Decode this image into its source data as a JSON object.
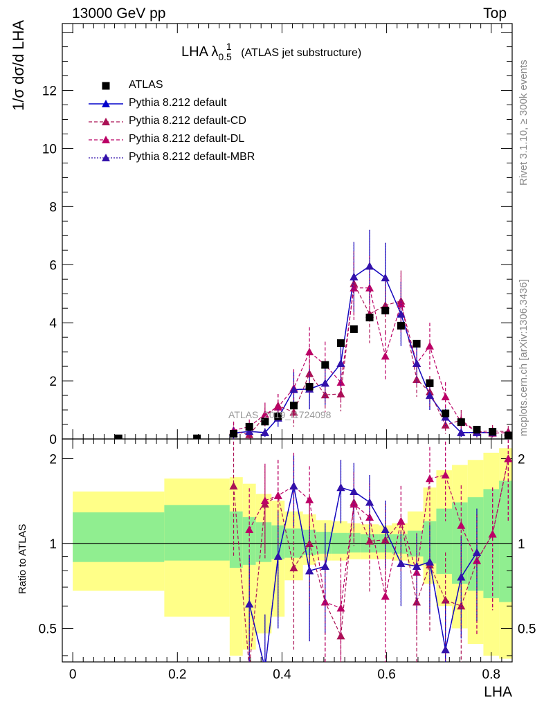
{
  "header": {
    "left": "13000 GeV pp",
    "right": "Top"
  },
  "plot_title": {
    "main": "LHA λ",
    "sub": "0.5",
    "sup": "1",
    "note": "(ATLAS jet substructure)"
  },
  "side_labels": {
    "rivet": "Rivet 3.1.10, ≥ 300k events",
    "mcplots": "mcplots.cern.ch [arXiv:1306.3436]"
  },
  "watermark": "ATLAS_2019_I1724098",
  "axis_labels": {
    "main_y": "1/σ dσ/d LHA",
    "ratio_y": "Ratio to ATLAS",
    "x": "LHA"
  },
  "legend": [
    "ATLAS",
    "Pythia 8.212 default",
    "Pythia 8.212 default-CD",
    "Pythia 8.212 default-DL",
    "Pythia 8.212 default-MBR"
  ],
  "colors": {
    "data": "#000000",
    "default": "#0000cc",
    "cd": "#aa1155",
    "dl": "#bb0066",
    "mbr": "#3311aa",
    "band_inner": "#90ee90",
    "band_outer": "#ffff88"
  },
  "chart_data": [
    {
      "type": "scatter",
      "panel": "main",
      "xlim": [
        -0.02,
        0.84
      ],
      "ylim": [
        0,
        14.3
      ],
      "yticks": [
        0,
        2,
        4,
        6,
        8,
        10,
        12
      ],
      "x": [
        0.0875,
        0.2375,
        0.3075,
        0.3375,
        0.3675,
        0.3925,
        0.4225,
        0.4525,
        0.4825,
        0.5125,
        0.5375,
        0.5675,
        0.5975,
        0.6275,
        0.6575,
        0.6825,
        0.7125,
        0.7425,
        0.7725,
        0.8025,
        0.8325
      ],
      "series": [
        {
          "name": "ATLAS",
          "values": [
            0.02,
            0.02,
            0.18,
            0.42,
            0.6,
            0.78,
            1.15,
            1.8,
            2.55,
            3.3,
            3.78,
            4.18,
            4.42,
            3.9,
            3.28,
            1.92,
            0.88,
            0.58,
            0.32,
            0.25,
            0.12
          ]
        },
        {
          "name": "Pythia 8.212 default",
          "values": [
            null,
            null,
            0.2,
            0.26,
            0.22,
            0.72,
            1.7,
            1.72,
            1.92,
            2.6,
            5.58,
            5.95,
            5.55,
            4.3,
            2.6,
            1.5,
            0.75,
            0.22,
            0.22,
            0.22,
            null
          ],
          "errors": [
            null,
            null,
            0.2,
            0.2,
            0.15,
            0.3,
            0.6,
            0.7,
            0.75,
            0.8,
            1.2,
            1.25,
            1.2,
            1.1,
            0.7,
            0.5,
            0.3,
            0.15,
            0.15,
            0.15,
            null
          ]
        },
        {
          "name": "Pythia 8.212 default-CD",
          "values": [
            null,
            null,
            0.28,
            0.15,
            0.78,
            1.15,
            0.92,
            2.25,
            1.52,
            1.55,
            5.35,
            4.3,
            4.6,
            4.75,
            2.05,
            1.62,
            0.48,
            0.65,
            0.25,
            0.28,
            0.25
          ],
          "errors": [
            null,
            null,
            0.3,
            0.15,
            0.35,
            0.4,
            0.5,
            0.7,
            0.6,
            0.6,
            1.1,
            1.0,
            1.05,
            1.05,
            0.6,
            0.55,
            0.3,
            0.35,
            0.2,
            0.2,
            0.2
          ]
        },
        {
          "name": "Pythia 8.212 default-DL",
          "values": [
            null,
            null,
            0.3,
            0.42,
            0.85,
            1.1,
            1.75,
            3.0,
            2.55,
            1.95,
            5.2,
            5.2,
            2.85,
            4.65,
            2.6,
            3.2,
            1.45,
            0.58,
            0.25,
            0.2,
            0.22
          ],
          "errors": [
            null,
            null,
            0.3,
            0.25,
            0.4,
            0.45,
            0.65,
            0.85,
            0.8,
            0.7,
            1.1,
            1.1,
            0.85,
            1.05,
            0.7,
            0.8,
            0.5,
            0.3,
            0.2,
            0.15,
            0.15
          ]
        },
        {
          "name": "Pythia 8.212 default-MBR",
          "values": [
            null,
            null,
            0.2,
            0.26,
            0.22,
            0.72,
            1.7,
            1.72,
            1.92,
            2.6,
            5.58,
            5.95,
            5.55,
            4.3,
            2.6,
            1.5,
            0.75,
            0.22,
            0.22,
            0.22,
            null
          ],
          "errors": [
            null,
            null,
            0.2,
            0.2,
            0.15,
            0.3,
            0.6,
            0.7,
            0.75,
            0.8,
            1.2,
            1.25,
            1.2,
            1.1,
            0.7,
            0.5,
            0.3,
            0.15,
            0.15,
            0.15,
            null
          ]
        }
      ]
    },
    {
      "type": "scatter",
      "panel": "ratio",
      "xlim": [
        -0.02,
        0.84
      ],
      "ylim": [
        0.38,
        2.35
      ],
      "ylog": true,
      "yticks": [
        0.5,
        1,
        2
      ],
      "xticks": [
        0,
        0.2,
        0.4,
        0.6,
        0.8
      ],
      "bands": {
        "edges": [
          0,
          0.175,
          0.3,
          0.325,
          0.35,
          0.38,
          0.405,
          0.44,
          0.465,
          0.495,
          0.525,
          0.55,
          0.585,
          0.61,
          0.64,
          0.67,
          0.695,
          0.725,
          0.755,
          0.785,
          0.815,
          0.845
        ],
        "inner_lo": [
          0.86,
          0.87,
          0.82,
          0.84,
          0.86,
          0.88,
          0.89,
          0.91,
          0.92,
          0.92,
          0.93,
          0.93,
          0.93,
          0.92,
          0.9,
          0.85,
          0.78,
          0.72,
          0.68,
          0.64,
          0.62
        ],
        "inner_hi": [
          1.29,
          1.37,
          1.3,
          1.24,
          1.19,
          1.16,
          1.13,
          1.12,
          1.1,
          1.09,
          1.09,
          1.08,
          1.08,
          1.08,
          1.11,
          1.2,
          1.33,
          1.4,
          1.46,
          1.56,
          1.67
        ],
        "outer_lo": [
          0.68,
          0.55,
          0.4,
          0.42,
          0.48,
          0.55,
          0.74,
          0.84,
          0.87,
          0.87,
          0.88,
          0.88,
          0.88,
          0.87,
          0.83,
          0.72,
          0.6,
          0.5,
          0.44,
          0.4,
          0.39
        ],
        "outer_hi": [
          1.53,
          1.7,
          1.72,
          1.63,
          1.5,
          1.42,
          1.3,
          1.27,
          1.21,
          1.2,
          1.18,
          1.17,
          1.16,
          1.18,
          1.3,
          1.58,
          1.82,
          1.9,
          1.98,
          2.1,
          2.18
        ]
      },
      "x": [
        0.3075,
        0.3375,
        0.3675,
        0.3925,
        0.4225,
        0.4525,
        0.4825,
        0.5125,
        0.5375,
        0.5675,
        0.5975,
        0.6275,
        0.6575,
        0.6825,
        0.7125,
        0.7425,
        0.7725,
        0.8025,
        0.8325
      ],
      "series": [
        {
          "name": "Pythia 8.212 default",
          "values": [
            null,
            0.61,
            0.36,
            0.9,
            1.6,
            0.8,
            0.83,
            1.58,
            1.53,
            1.4,
            1.12,
            0.85,
            0.83,
            0.86,
            0.42,
            0.76,
            0.93,
            null,
            null
          ],
          "errors": [
            null,
            0.3,
            0.2,
            0.4,
            0.45,
            0.35,
            0.35,
            0.4,
            0.4,
            0.35,
            0.3,
            0.25,
            0.25,
            0.3,
            0.2,
            0.3,
            0.4,
            null,
            null
          ]
        },
        {
          "name": "Pythia 8.212 default-CD",
          "values": [
            1.6,
            0.36,
            1.38,
            1.48,
            0.82,
            1.0,
            0.62,
            0.47,
            1.4,
            1.02,
            1.03,
            1.2,
            0.62,
            0.84,
            0.63,
            0.6,
            0.87,
            1.08,
            2.0
          ],
          "errors": [
            0.7,
            0.3,
            0.5,
            0.5,
            0.4,
            0.4,
            0.3,
            0.25,
            0.4,
            0.35,
            0.35,
            0.4,
            0.3,
            0.35,
            0.3,
            0.3,
            0.4,
            0.5,
            0.8
          ]
        },
        {
          "name": "Pythia 8.212 default-DL",
          "values": [
            null,
            1.12,
            1.42,
            1.48,
            1.6,
            1.43,
            0.62,
            0.59,
            1.38,
            1.24,
            0.65,
            1.2,
            0.79,
            1.7,
            1.75,
            1.16,
            0.87,
            1.08,
            2.0
          ],
          "errors": [
            null,
            0.45,
            0.5,
            0.5,
            0.5,
            0.45,
            0.3,
            0.3,
            0.4,
            0.4,
            0.3,
            0.4,
            0.3,
            0.5,
            0.55,
            0.45,
            0.4,
            0.5,
            0.8
          ]
        },
        {
          "name": "Pythia 8.212 default-MBR",
          "values": [
            null,
            0.61,
            0.36,
            0.9,
            1.6,
            0.8,
            0.83,
            1.58,
            1.53,
            1.4,
            1.12,
            0.85,
            0.83,
            0.86,
            0.42,
            0.76,
            0.93,
            null,
            null
          ],
          "errors": [
            null,
            0.3,
            0.2,
            0.4,
            0.45,
            0.35,
            0.35,
            0.4,
            0.4,
            0.35,
            0.3,
            0.25,
            0.25,
            0.3,
            0.2,
            0.3,
            0.4,
            null,
            null
          ]
        }
      ]
    }
  ]
}
